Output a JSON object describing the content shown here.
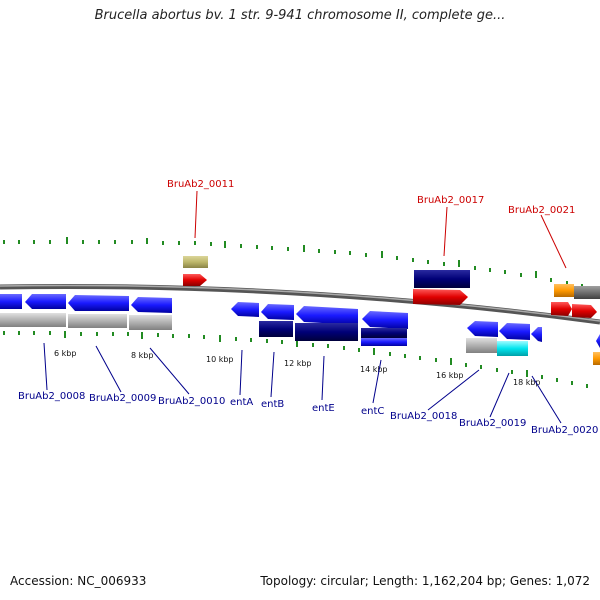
{
  "title": "Brucella abortus bv. 1 str. 9-941 chromosome II, complete ge...",
  "footer": {
    "accession": "Accession: NC_006933",
    "summary": "Topology: circular; Length: 1,162,204 bp; Genes: 1,072"
  },
  "scale_labels": {
    "k6": "6 kbp",
    "k8": "8 kbp",
    "k10": "10 kbp",
    "k12": "12 kbp",
    "k14": "14 kbp",
    "k16": "16 kbp",
    "k18": "18 kbp"
  },
  "gene_labels": {
    "b0011": "BruAb2_0011",
    "b0017": "BruAb2_0017",
    "b0021": "BruAb2_0021",
    "b0008": "BruAb2_0008",
    "b0009": "BruAb2_0009",
    "b0010": "BruAb2_0010",
    "entA": "entA",
    "entB": "entB",
    "entE": "entE",
    "entC": "entC",
    "b0018": "BruAb2_0018",
    "b0019": "BruAb2_0019",
    "b0020": "BruAb2_0020"
  },
  "colors": {
    "forward_cds": "#e00000",
    "reverse_cds": "#1a1aff",
    "dark_feature": "#000077",
    "gray_feature": "#b0b0b0",
    "orange_feature": "#ff9900",
    "olive_feature": "#bdb76b",
    "cyan_feature": "#00e5ee",
    "scale_tick": "#228b22",
    "upper_label": "#cc0000",
    "lower_label": "#00008b"
  }
}
